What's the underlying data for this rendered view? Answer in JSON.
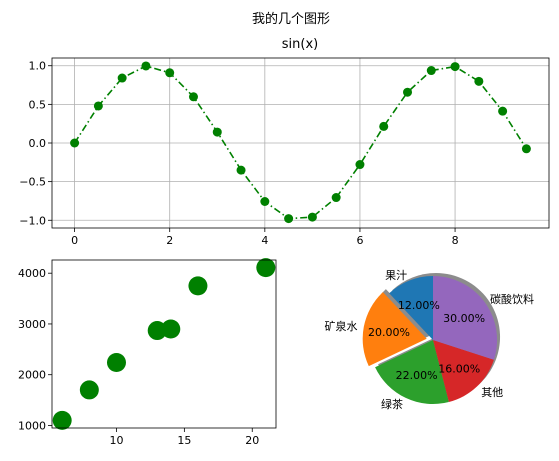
{
  "figure": {
    "suptitle": "我的几个图形"
  },
  "chart_data": [
    {
      "type": "line",
      "title": "sin(x)",
      "xlabel": "",
      "ylabel": "",
      "grid": true,
      "color": "#008000",
      "line_style": "dash-dot",
      "marker": "circle",
      "x": [
        0,
        0.5,
        1,
        1.5,
        2,
        2.5,
        3,
        3.5,
        4,
        4.5,
        5,
        5.5,
        6,
        6.5,
        7,
        7.5,
        8,
        8.5,
        9,
        9.5
      ],
      "y": [
        0.0,
        0.479,
        0.841,
        0.997,
        0.909,
        0.598,
        0.141,
        -0.351,
        -0.757,
        -0.978,
        -0.959,
        -0.706,
        -0.279,
        0.215,
        0.657,
        0.938,
        0.989,
        0.798,
        0.412,
        -0.075
      ],
      "xlim": [
        -0.475,
        9.975
      ],
      "ylim": [
        -1.1,
        1.1
      ],
      "xticks": [
        0,
        2,
        4,
        6,
        8
      ],
      "xtick_labels": [
        "0",
        "2",
        "4",
        "6",
        "8"
      ],
      "yticks": [
        1.0,
        0.5,
        0.0,
        -0.5,
        -1.0
      ],
      "ytick_labels": [
        "1.0",
        "0.5",
        "0.0",
        "−0.5",
        "−1.0"
      ]
    },
    {
      "type": "scatter",
      "title": "",
      "xlabel": "",
      "ylabel": "",
      "grid": false,
      "color": "#008000",
      "x": [
        6,
        8,
        10,
        13,
        14,
        16,
        21
      ],
      "y": [
        1100,
        1700,
        2240,
        2870,
        2900,
        3750,
        4110
      ],
      "xlim": [
        5.25,
        21.75
      ],
      "ylim": [
        950,
        4260
      ],
      "xticks": [
        10,
        15,
        20
      ],
      "xtick_labels": [
        "10",
        "15",
        "20"
      ],
      "yticks": [
        1000,
        2000,
        3000,
        4000
      ],
      "ytick_labels": [
        "1000",
        "2000",
        "3000",
        "4000"
      ]
    },
    {
      "type": "pie",
      "title": "",
      "start_angle_deg": 90,
      "shadow": true,
      "explode": [
        0,
        0.1,
        0,
        0,
        0
      ],
      "slices": [
        {
          "label": "果汁",
          "value": 12,
          "pct": "12.00%",
          "color": "#1f77b4"
        },
        {
          "label": "矿泉水",
          "value": 20,
          "pct": "20.00%",
          "color": "#ff7f0e"
        },
        {
          "label": "绿茶",
          "value": 22,
          "pct": "22.00%",
          "color": "#2ca02c"
        },
        {
          "label": "其他",
          "value": 16,
          "pct": "16.00%",
          "color": "#d62728"
        },
        {
          "label": "碳酸饮料",
          "value": 30,
          "pct": "30.00%",
          "color": "#9467bd"
        }
      ]
    }
  ]
}
